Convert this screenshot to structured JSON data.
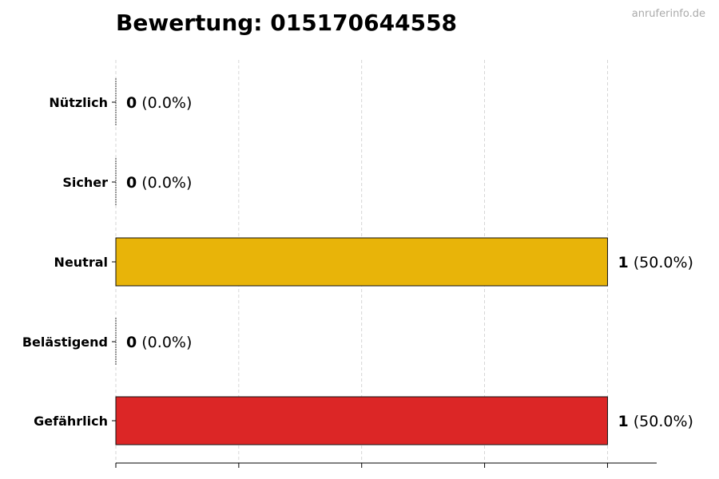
{
  "watermark": "anruferinfo.de",
  "chart_data": {
    "type": "bar",
    "orientation": "horizontal",
    "title": "Bewertung: 015170644558",
    "categories": [
      "Nützlich",
      "Sicher",
      "Neutral",
      "Belästigend",
      "Gefährlich"
    ],
    "values": [
      0,
      0,
      1,
      0,
      1
    ],
    "labels": [
      {
        "count": "0",
        "pct": "(0.0%)"
      },
      {
        "count": "0",
        "pct": "(0.0%)"
      },
      {
        "count": "1",
        "pct": "(50.0%)"
      },
      {
        "count": "0",
        "pct": "(0.0%)"
      },
      {
        "count": "1",
        "pct": "(50.0%)"
      }
    ],
    "colors": [
      "#22a05a",
      "#2a7fd4",
      "#E8B409",
      "#f08c1e",
      "#DC2626"
    ],
    "xlim": [
      0,
      1.1
    ],
    "xticks": [
      0,
      0.25,
      0.5,
      0.75,
      1
    ],
    "grid": true,
    "xlabel": "",
    "ylabel": ""
  }
}
